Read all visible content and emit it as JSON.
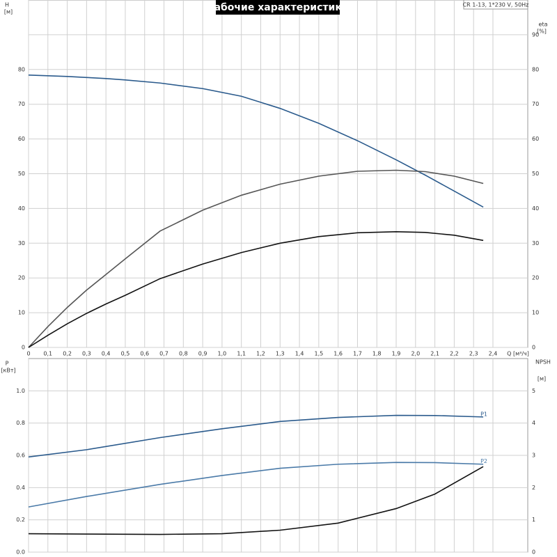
{
  "chart_data": [
    {
      "type": "line",
      "title": "Рабочие характеристики",
      "subtitle": "CR 1-13, 1*230 V, 50Hz",
      "ylabel": "H",
      "ylabel_unit": "[м]",
      "y2label": "eta",
      "y2label_unit": "[%]",
      "xlabel": "Q [м³/ч]",
      "x": [
        0,
        0.1,
        0.2,
        0.3,
        0.4,
        0.5,
        0.68,
        0.9,
        1.1,
        1.3,
        1.5,
        1.7,
        1.9,
        2.05,
        2.2,
        2.35
      ],
      "series": [
        {
          "color": "#2a5a8c",
          "values": [
            78.4,
            78.2,
            78,
            77.7,
            77.4,
            77,
            76.1,
            74.5,
            72.3,
            68.8,
            64.5,
            59.5,
            54,
            49.6,
            45,
            40.4
          ]
        },
        {
          "color": "#555555",
          "axis": "y2",
          "values": [
            0,
            6,
            11.5,
            16.5,
            21,
            25.5,
            33.5,
            39.5,
            43.8,
            47,
            49.3,
            50.7,
            51,
            50.6,
            49.3,
            47.2
          ]
        },
        {
          "color": "#111111",
          "axis": "y2",
          "values": [
            0,
            3.5,
            6.8,
            9.8,
            12.5,
            15,
            19.8,
            24,
            27.3,
            30,
            31.9,
            33,
            33.3,
            33.1,
            32.3,
            30.8
          ]
        }
      ],
      "xlim": [
        0,
        2.58
      ],
      "xticks": [
        0,
        {
          "value": 0.1,
          "label": "0,1"
        },
        {
          "value": 0.2,
          "label": "0,2"
        },
        {
          "value": 0.3,
          "label": "0,3"
        },
        {
          "value": 0.4,
          "label": "0,4"
        },
        {
          "value": 0.5,
          "label": "0,5"
        },
        {
          "value": 0.6,
          "label": "0,6"
        },
        {
          "value": 0.7,
          "label": "0,7"
        },
        {
          "value": 0.8,
          "label": "0,8"
        },
        {
          "value": 0.9,
          "label": "0,9"
        },
        {
          "value": 1.0,
          "label": "1,0"
        },
        {
          "value": 1.1,
          "label": "1,1"
        },
        {
          "value": 1.2,
          "label": "1,2"
        },
        {
          "value": 1.3,
          "label": "1,3"
        },
        {
          "value": 1.4,
          "label": "1,4"
        },
        {
          "value": 1.5,
          "label": "1,5"
        },
        {
          "value": 1.6,
          "label": "1,6"
        },
        {
          "value": 1.7,
          "label": "1,7"
        },
        {
          "value": 1.8,
          "label": "1,8"
        },
        {
          "value": 1.9,
          "label": "1,9"
        },
        {
          "value": 2.0,
          "label": "2,0"
        },
        {
          "value": 2.1,
          "label": "2,1"
        },
        {
          "value": 2.2,
          "label": "2,2"
        },
        {
          "value": 2.3,
          "label": "2,3"
        },
        {
          "value": 2.4,
          "label": "2,4"
        }
      ],
      "ylim": [
        0,
        100
      ],
      "yticks": [
        0,
        10,
        20,
        30,
        40,
        50,
        60,
        70,
        80
      ],
      "y2lim": [
        0,
        100
      ],
      "y2ticks": [
        0,
        10,
        20,
        30,
        40,
        50,
        60,
        70,
        80,
        90
      ],
      "grid": true
    },
    {
      "type": "line",
      "ylabel": "P",
      "ylabel_unit": "[кВт]",
      "y2label": "NPSH",
      "y2label_unit": "[м]",
      "x": [
        0,
        0.3,
        0.68,
        1.0,
        1.3,
        1.6,
        1.9,
        2.1,
        2.35
      ],
      "series": [
        {
          "name": "P1",
          "color": "#2a5a8c",
          "values": [
            0.59,
            0.635,
            0.71,
            0.765,
            0.81,
            0.835,
            0.848,
            0.847,
            0.838
          ]
        },
        {
          "name": "P2",
          "color": "#4a7aa8",
          "values": [
            0.28,
            0.345,
            0.42,
            0.475,
            0.52,
            0.545,
            0.556,
            0.555,
            0.545
          ]
        },
        {
          "color": "#111111",
          "axis": "y2",
          "values": [
            0.57,
            0.56,
            0.55,
            0.57,
            0.68,
            0.9,
            1.35,
            1.8,
            2.65
          ]
        }
      ],
      "xlim": [
        0,
        2.58
      ],
      "ylim": [
        0,
        1.2
      ],
      "yticks": [
        {
          "value": 0,
          "label": "0.0"
        },
        {
          "value": 0.2,
          "label": "0.2"
        },
        {
          "value": 0.4,
          "label": "0.4"
        },
        {
          "value": 0.6,
          "label": "0.6"
        },
        {
          "value": 0.8,
          "label": "0.8"
        },
        {
          "value": 1.0,
          "label": "1.0"
        }
      ],
      "y2lim": [
        0,
        6
      ],
      "y2ticks": [
        0,
        1,
        2,
        3,
        4,
        5
      ],
      "grid": true
    }
  ]
}
